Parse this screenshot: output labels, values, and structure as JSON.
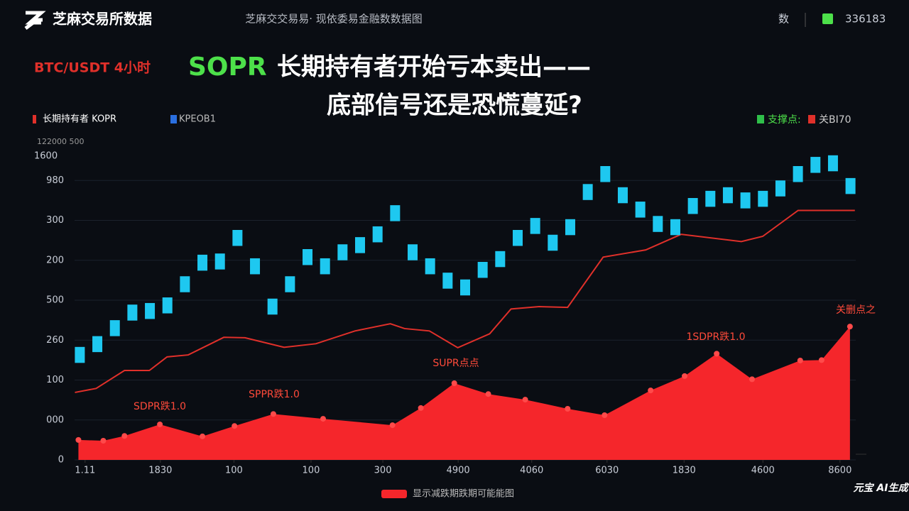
{
  "header": {
    "logo": "芝麻交易所数据",
    "center": "芝麻交交易易· 现依委易金融数数据图",
    "right_label": "数",
    "right_value": "336183"
  },
  "headline": {
    "pair": "BTC/USDT 4小时",
    "indicator": "SOPR",
    "line1": "长期持有者开始亏本卖出——",
    "line2": "底部信号还是恐慌蔓延?"
  },
  "chart_data": {
    "type": "combo",
    "subtitle": "122000 500",
    "y_label": "1600",
    "legend_right": [
      "支撑点:",
      "关BI70"
    ],
    "annotations": [
      "SDPR跌1.0",
      "SPPR跌1.0",
      "SUPR点点",
      "1SDPR跌1.0",
      "关删点之"
    ],
    "xlim": [
      -0.3,
      44.3
    ],
    "xticks": [
      {
        "value": 0.3,
        "label": "1.11"
      },
      {
        "value": 4.6,
        "label": "1830"
      },
      {
        "value": 8.8,
        "label": "100"
      },
      {
        "value": 13.2,
        "label": "100"
      },
      {
        "value": 17.3,
        "label": "300"
      },
      {
        "value": 21.6,
        "label": "4900"
      },
      {
        "value": 25.8,
        "label": "4060"
      },
      {
        "value": 30.1,
        "label": "6030"
      },
      {
        "value": 34.5,
        "label": "1830"
      },
      {
        "value": 39,
        "label": "4600"
      },
      {
        "value": 43.4,
        "label": "8600"
      }
    ],
    "ylim": [
      0,
      800
    ],
    "yticks": [
      0,
      {
        "value": 100,
        "label": "000"
      },
      {
        "value": 200,
        "label": "100"
      },
      {
        "value": 300,
        "label": "260"
      },
      {
        "value": 400,
        "label": "500"
      },
      {
        "value": 500,
        "label": "200"
      },
      {
        "value": 600,
        "label": "300"
      },
      {
        "value": 700,
        "label": "980"
      }
    ],
    "grid": true,
    "series": [
      {
        "name": "长期持有者 KOPR",
        "type": "line",
        "color": "#e0302a",
        "x": [
          -0.28,
          0.93,
          2.55,
          3.97,
          4.98,
          6.19,
          8.22,
          9.43,
          11.66,
          13.48,
          15.71,
          17.73,
          18.54,
          19.96,
          21.58,
          23.4,
          24.62,
          26.23,
          27.85,
          29.88,
          32.31,
          34.33,
          37.77,
          38.99,
          41.01,
          44.25
        ],
        "values": [
          169,
          179,
          224,
          224,
          258,
          263,
          307,
          306,
          282,
          291,
          323,
          341,
          329,
          323,
          281,
          316,
          378,
          384,
          382,
          508,
          526,
          565,
          547,
          560,
          625,
          625
        ]
      },
      {
        "name": "KPEOB1",
        "type": "candlestick",
        "color": "#1ec8f0",
        "x": [
          0,
          1,
          2,
          3,
          4,
          5,
          6,
          7,
          8,
          9,
          10,
          11,
          12,
          13,
          14,
          15,
          16,
          17,
          18,
          19,
          20,
          21,
          22,
          23,
          24,
          25,
          26,
          27,
          28,
          29,
          30,
          31,
          32,
          33,
          34,
          35,
          36,
          37,
          38,
          39,
          40,
          41,
          42,
          43,
          44
        ],
        "open": [
          243,
          270,
          310,
          349,
          353,
          367,
          420,
          474,
          477,
          536,
          505,
          404,
          420,
          488,
          505,
          500,
          518,
          545,
          598,
          540,
          505,
          469,
          452,
          456,
          483,
          536,
          566,
          564,
          563,
          651,
          696,
          683,
          647,
          611,
          603,
          616,
          634,
          643,
          670,
          634,
          660,
          696,
          719,
          723,
          706
        ],
        "close": [
          283,
          310,
          350,
          389,
          393,
          407,
          460,
          514,
          517,
          576,
          465,
          364,
          460,
          528,
          465,
          540,
          558,
          585,
          638,
          500,
          465,
          429,
          412,
          496,
          523,
          576,
          606,
          524,
          603,
          691,
          736,
          643,
          607,
          571,
          563,
          656,
          674,
          683,
          630,
          674,
          700,
          736,
          759,
          763,
          666
        ]
      },
      {
        "name": "显示减跌期跌期可能能图",
        "type": "area",
        "color": "#f5262b",
        "x": [
          -0.08,
          1.34,
          2.55,
          4.57,
          7.0,
          8.83,
          11.05,
          13.89,
          17.85,
          19.47,
          21.38,
          23.32,
          25.43,
          27.85,
          29.96,
          32.59,
          34.53,
          36.36,
          38.38,
          41.13,
          42.35,
          43.97
        ],
        "values": [
          50,
          48,
          60,
          89,
          59,
          85,
          115,
          103,
          87,
          130,
          192,
          165,
          151,
          128,
          112,
          174,
          210,
          266,
          202,
          249,
          250,
          334
        ]
      }
    ]
  }
}
